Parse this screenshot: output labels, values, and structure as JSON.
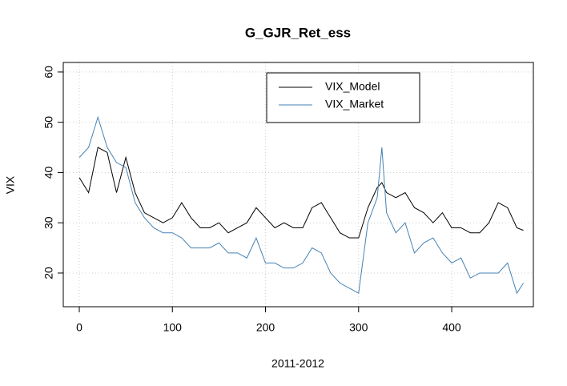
{
  "chart_data": {
    "type": "line",
    "title": "G_GJR_Ret_ess",
    "x_label": "2011-2012",
    "y_label": "VIX",
    "x": [
      0,
      10,
      20,
      30,
      40,
      50,
      60,
      70,
      80,
      90,
      100,
      110,
      120,
      130,
      140,
      150,
      160,
      170,
      180,
      190,
      200,
      210,
      220,
      230,
      240,
      250,
      260,
      270,
      280,
      290,
      300,
      310,
      320,
      325,
      330,
      340,
      350,
      360,
      370,
      380,
      390,
      400,
      410,
      420,
      430,
      440,
      450,
      460,
      470,
      477
    ],
    "series": [
      {
        "name": "VIX_Model",
        "color": "#000000",
        "values": [
          39,
          36,
          45,
          44,
          36,
          43,
          36,
          32,
          31,
          30,
          31,
          34,
          31,
          29,
          29,
          30,
          28,
          29,
          30,
          33,
          31,
          29,
          30,
          29,
          29,
          33,
          34,
          31,
          28,
          27,
          27,
          33,
          37,
          38,
          36,
          35,
          36,
          33,
          32,
          30,
          32,
          29,
          29,
          28,
          28,
          30,
          34,
          33,
          29,
          28.5
        ]
      },
      {
        "name": "VIX_Market",
        "color": "#4682b4",
        "values": [
          43,
          45,
          51,
          45,
          42,
          41,
          34,
          31,
          29,
          28,
          28,
          27,
          25,
          25,
          25,
          26,
          24,
          24,
          23,
          27,
          22,
          22,
          21,
          21,
          22,
          25,
          24,
          20,
          18,
          17,
          16,
          30,
          35,
          45,
          32,
          28,
          30,
          24,
          26,
          27,
          24,
          22,
          23,
          19,
          20,
          20,
          20,
          22,
          16,
          18
        ]
      }
    ],
    "xlim": [
      -17.2,
      487.7
    ],
    "ylim": [
      13.3,
      61.9
    ],
    "xticks": [
      0,
      100,
      200,
      300,
      400
    ],
    "yticks": [
      20,
      30,
      40,
      50,
      60
    ],
    "grid": true,
    "legend": "top"
  }
}
